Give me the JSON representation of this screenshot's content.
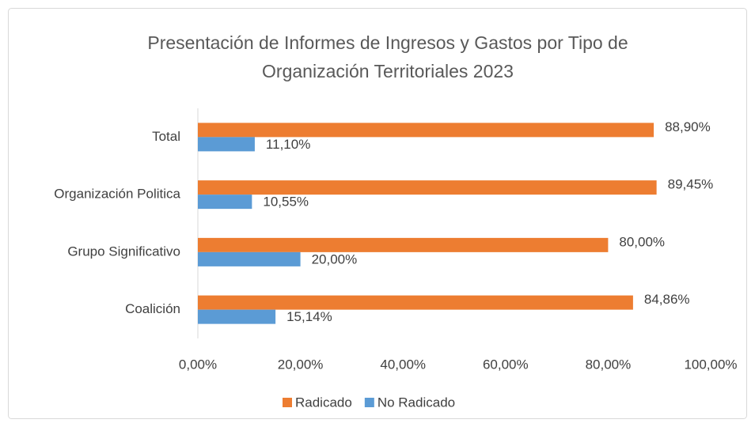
{
  "chart_data": {
    "type": "hbar",
    "title": "Presentación de Informes de Ingresos y Gastos por Tipo de Organización Territoriales 2023",
    "categories": [
      "Total",
      "Organización Politica",
      "Grupo Significativo",
      "Coalición"
    ],
    "series": [
      {
        "name": "Radicado",
        "color": "#ED7D31",
        "values": [
          88.9,
          89.45,
          80,
          84.86
        ],
        "value_labels": [
          "88,90%",
          "89,45%",
          "80,00%",
          "84,86%"
        ]
      },
      {
        "name": "No Radicado",
        "color": "#5B9BD5",
        "values": [
          11.1,
          10.55,
          20,
          15.14
        ],
        "value_labels": [
          "11,10%",
          "10,55%",
          "20,00%",
          "15,14%"
        ]
      }
    ],
    "xlim": [
      0,
      100
    ],
    "xticks": [
      {
        "value": 0,
        "label": "0,00%"
      },
      {
        "value": 20,
        "label": "20,00%"
      },
      {
        "value": 40,
        "label": "40,00%"
      },
      {
        "value": 60,
        "label": "60,00%"
      },
      {
        "value": 80,
        "label": "80,00%"
      },
      {
        "value": 100,
        "label": "100,00%"
      }
    ],
    "legend": "bottom"
  }
}
